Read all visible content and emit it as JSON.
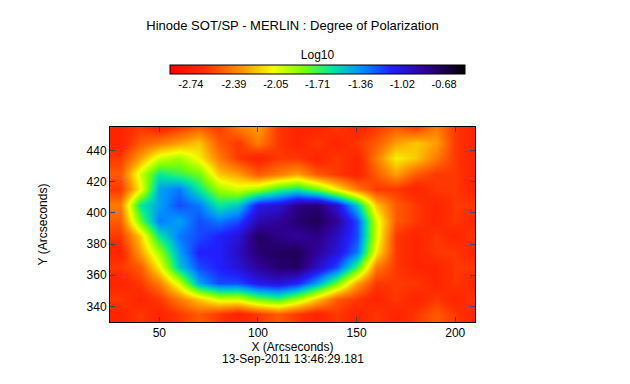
{
  "chart_data": {
    "type": "heatmap",
    "title": "Hinode SOT/SP - MERLIN : Degree of Polarization",
    "colorbar_title": "Log10",
    "xlabel": "X (Arcseconds)",
    "ylabel": "Y (Arcseconds)",
    "annotation": "13-Sep-2011 13:46:29.181",
    "x": [
      30,
      40,
      50,
      60,
      70,
      80,
      90,
      100,
      110,
      120,
      130,
      140,
      150,
      160,
      170,
      180,
      190,
      200,
      210
    ],
    "y": [
      335,
      345,
      355,
      365,
      375,
      385,
      395,
      405,
      415,
      425,
      435,
      445,
      455
    ],
    "z": [
      [
        -2.7,
        -2.6,
        -2.7,
        -2.6,
        -2.5,
        -2.6,
        -2.7,
        -2.6,
        -2.5,
        -2.6,
        -2.7,
        -2.6,
        -2.7,
        -2.6,
        -2.7,
        -2.6,
        -2.5,
        -2.6,
        -2.7
      ],
      [
        -2.6,
        -2.7,
        -2.6,
        -2.4,
        -2.2,
        -2.0,
        -2.0,
        -1.8,
        -1.7,
        -1.9,
        -2.2,
        -2.5,
        -2.6,
        -2.7,
        -2.6,
        -2.7,
        -2.6,
        -2.7,
        -2.6
      ],
      [
        -2.7,
        -2.6,
        -2.4,
        -2.0,
        -1.4,
        -1.2,
        -1.2,
        -1.05,
        -1.0,
        -1.1,
        -1.4,
        -1.8,
        -2.3,
        -2.6,
        -2.6,
        -2.6,
        -2.7,
        -2.6,
        -2.7
      ],
      [
        -2.6,
        -2.5,
        -2.1,
        -1.5,
        -1.2,
        -1.1,
        -1.0,
        -0.85,
        -0.75,
        -0.72,
        -0.95,
        -1.2,
        -1.7,
        -2.4,
        -2.6,
        -2.7,
        -2.7,
        -2.6,
        -2.6
      ],
      [
        -2.7,
        -2.3,
        -1.9,
        -1.4,
        -1.1,
        -1.1,
        -0.95,
        -0.75,
        -0.72,
        -0.7,
        -0.85,
        -1.0,
        -1.3,
        -2.1,
        -2.6,
        -2.7,
        -2.6,
        -2.6,
        -2.7
      ],
      [
        -2.6,
        -2.2,
        -1.6,
        -1.3,
        -1.2,
        -1.1,
        -1.0,
        -0.72,
        -0.8,
        -0.85,
        -0.8,
        -0.95,
        -1.2,
        -2.0,
        -2.6,
        -2.7,
        -2.6,
        -2.7,
        -2.6
      ],
      [
        -2.5,
        -1.8,
        -1.3,
        -1.4,
        -1.2,
        -1.3,
        -1.2,
        -0.9,
        -0.85,
        -0.75,
        -0.7,
        -0.85,
        -1.2,
        -2.0,
        -2.5,
        -2.6,
        -2.7,
        -2.6,
        -2.7
      ],
      [
        -2.4,
        -1.6,
        -1.4,
        -1.2,
        -1.3,
        -1.6,
        -1.5,
        -1.05,
        -1.0,
        -0.8,
        -0.75,
        -1.0,
        -1.5,
        -2.2,
        -2.5,
        -2.6,
        -2.7,
        -2.6,
        -2.6
      ],
      [
        -2.6,
        -2.1,
        -1.4,
        -1.3,
        -1.6,
        -1.9,
        -2.0,
        -1.9,
        -1.7,
        -1.6,
        -1.8,
        -2.1,
        -2.4,
        -2.6,
        -2.6,
        -2.7,
        -2.6,
        -2.6,
        -2.7
      ],
      [
        -2.5,
        -2.0,
        -1.6,
        -1.7,
        -1.8,
        -2.2,
        -2.3,
        -2.5,
        -2.4,
        -2.3,
        -2.5,
        -2.6,
        -2.7,
        -2.5,
        -2.3,
        -2.5,
        -2.6,
        -2.6,
        -2.7
      ],
      [
        -2.6,
        -2.3,
        -2.0,
        -1.9,
        -2.1,
        -2.4,
        -2.6,
        -2.7,
        -2.6,
        -2.6,
        -2.7,
        -2.6,
        -2.7,
        -2.4,
        -2.1,
        -2.2,
        -2.4,
        -2.6,
        -2.7
      ],
      [
        -2.7,
        -2.5,
        -2.4,
        -2.3,
        -2.2,
        -2.5,
        -2.6,
        -2.4,
        -2.6,
        -2.7,
        -2.6,
        -2.7,
        -2.6,
        -2.5,
        -2.3,
        -2.2,
        -2.3,
        -2.6,
        -2.7
      ],
      [
        -2.7,
        -2.6,
        -2.7,
        -2.6,
        -2.5,
        -2.6,
        -2.4,
        -2.3,
        -2.6,
        -2.7,
        -2.7,
        -2.6,
        -2.7,
        -2.6,
        -2.5,
        -2.6,
        -2.4,
        -2.6,
        -2.7
      ]
    ],
    "xlim": [
      25,
      210
    ],
    "ylim": [
      330,
      455
    ],
    "xticks": [
      50,
      100,
      150,
      200
    ],
    "yticks": [
      340,
      360,
      380,
      400,
      420,
      440
    ],
    "zlim": [
      -2.91,
      -0.51
    ],
    "zticks": [
      -2.74,
      -2.39,
      -2.05,
      -1.71,
      -1.36,
      -1.02,
      -0.68
    ]
  }
}
